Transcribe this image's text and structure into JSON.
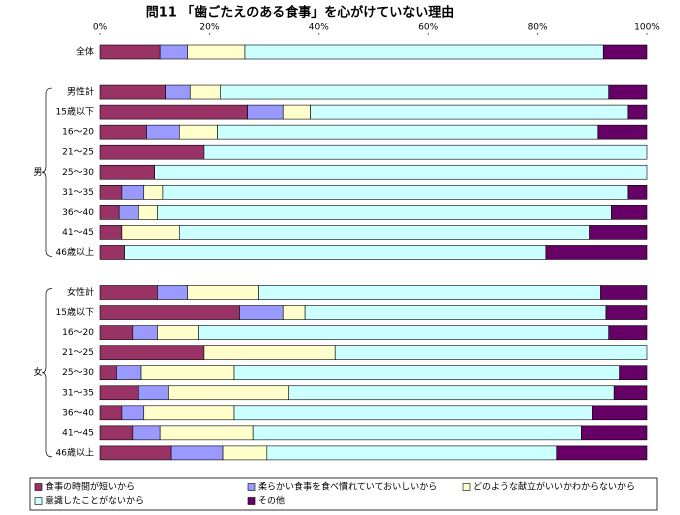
{
  "chart_data": {
    "type": "bar",
    "orientation": "horizontal",
    "stacked": true,
    "title": "問11 「歯ごたえのある食事」を心がけていない理由",
    "categories": [
      "全体",
      "男性計",
      "15歳以下",
      "16～20",
      "21～25",
      "25～30",
      "31～35",
      "36～40",
      "41～45",
      "46歳以上",
      "女性計",
      "15歳以下",
      "16～20",
      "21～25",
      "25～30",
      "31～35",
      "36～40",
      "41～45",
      "46歳以上"
    ],
    "groups": [
      "男",
      "女"
    ],
    "xlim": [
      0,
      100
    ],
    "xticks": [
      {
        "value": 0,
        "label": "0%"
      },
      {
        "value": 20,
        "label": "20%"
      },
      {
        "value": 40,
        "label": "40%"
      },
      {
        "value": 60,
        "label": "60%"
      },
      {
        "value": 80,
        "label": "80%"
      },
      {
        "value": 100,
        "label": "100%"
      }
    ],
    "series": [
      {
        "name": "食事の時間が短いから",
        "color": "#993366",
        "values": [
          11,
          12,
          27,
          8.5,
          19,
          10,
          4,
          3.5,
          4,
          4.5,
          10.5,
          25.5,
          6,
          19,
          3,
          7,
          4,
          6,
          13
        ]
      },
      {
        "name": "柔らかい食事を食べ慣れていておいしいから",
        "color": "#9999ff",
        "values": [
          5,
          4.5,
          6.5,
          6,
          0,
          0,
          4,
          3.5,
          0,
          0,
          5.5,
          8,
          4.5,
          0,
          4.5,
          5.5,
          4,
          5,
          9.5
        ]
      },
      {
        "name": "どのような献立がいいかわからないから",
        "color": "#ffffcc",
        "values": [
          10.5,
          5.5,
          5,
          7,
          0,
          0,
          3.5,
          3.5,
          10.5,
          0,
          13,
          4,
          7.5,
          24,
          17,
          22,
          16.5,
          17,
          8
        ]
      },
      {
        "name": "意識したことがないから",
        "color": "#ccffff",
        "values": [
          65.5,
          71,
          58,
          69.5,
          81,
          90,
          85,
          83,
          75,
          77,
          62.5,
          55,
          75,
          57,
          70.5,
          59.5,
          65.5,
          60,
          53
        ]
      },
      {
        "name": "その他",
        "color": "#660066",
        "values": [
          8,
          7,
          3.5,
          9,
          0,
          0,
          3.5,
          6.5,
          10.5,
          18.5,
          8.5,
          7.5,
          7,
          0,
          5,
          6,
          10,
          12,
          16.5
        ]
      }
    ]
  }
}
